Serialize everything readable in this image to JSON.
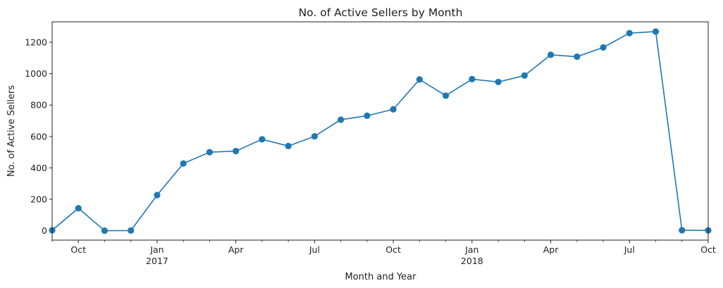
{
  "chart_data": {
    "type": "line",
    "title": "No. of Active Sellers by Month",
    "xlabel": "Month and Year",
    "ylabel": "No. of Active Sellers",
    "ylim": [
      -60,
      1330
    ],
    "grid": false,
    "legend": "none",
    "marker": "circle",
    "color": "#1f77b4",
    "x": [
      "2016-09",
      "2016-10",
      "2016-11",
      "2016-12",
      "2017-01",
      "2017-02",
      "2017-03",
      "2017-04",
      "2017-05",
      "2017-06",
      "2017-07",
      "2017-08",
      "2017-09",
      "2017-10",
      "2017-11",
      "2017-12",
      "2018-01",
      "2018-02",
      "2018-03",
      "2018-04",
      "2018-05",
      "2018-06",
      "2018-07",
      "2018-08",
      "2018-09",
      "2018-10"
    ],
    "series": [
      {
        "values": [
          3,
          143,
          0,
          1,
          227,
          428,
          500,
          507,
          582,
          539,
          601,
          707,
          732,
          773,
          963,
          860,
          965,
          947,
          988,
          1120,
          1108,
          1167,
          1258,
          1268,
          3,
          2
        ]
      }
    ],
    "yticks": [
      0,
      200,
      400,
      600,
      800,
      1000,
      1200
    ],
    "ytick_labels": [
      "0",
      "200",
      "400",
      "600",
      "800",
      "1000",
      "1200"
    ],
    "xticks_major": [
      {
        "x": "2016-10",
        "label": "Oct",
        "year": ""
      },
      {
        "x": "2017-01",
        "label": "Jan",
        "year": "2017"
      },
      {
        "x": "2017-04",
        "label": "Apr",
        "year": ""
      },
      {
        "x": "2017-07",
        "label": "Jul",
        "year": ""
      },
      {
        "x": "2017-10",
        "label": "Oct",
        "year": ""
      },
      {
        "x": "2018-01",
        "label": "Jan",
        "year": "2018"
      },
      {
        "x": "2018-04",
        "label": "Apr",
        "year": ""
      },
      {
        "x": "2018-07",
        "label": "Jul",
        "year": ""
      },
      {
        "x": "2018-10",
        "label": "Oct",
        "year": ""
      }
    ]
  }
}
